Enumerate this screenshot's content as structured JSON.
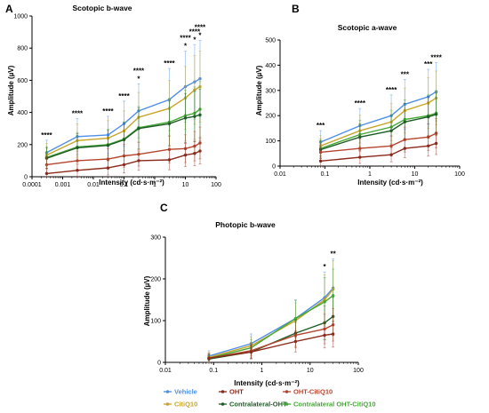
{
  "colors": {
    "Vehicle": "#4f8fe8",
    "CitiQ10": "#c8a42a",
    "OHT": "#8b2a1b",
    "Contralateral-OHT": "#1e5c26",
    "OHT-CitiQ10": "#b5452e",
    "Contralateral OHT-CitiQ10": "#44a834"
  },
  "legend": {
    "items": [
      {
        "label": "Vehicle",
        "color": "#4f8fe8"
      },
      {
        "label": "OHT",
        "color": "#8b2a1b"
      },
      {
        "label": "OHT-CitiQ10",
        "color": "#b5452e"
      },
      {
        "label": "CitiQ10",
        "color": "#c8a42a"
      },
      {
        "label": "Contralateral-OHT",
        "color": "#1e5c26"
      },
      {
        "label": "Contralateral OHT-CitiQ10",
        "color": "#44a834"
      }
    ]
  },
  "chart_data": [
    {
      "panel": "A",
      "type": "line",
      "title": "Scotopic b-wave",
      "xlabel": "Intensity (cd·s·m⁻²)",
      "ylabel": "Amplitude (µV)",
      "xscale": "log",
      "xlim": [
        0.0001,
        100
      ],
      "ylim": [
        0,
        1000
      ],
      "xticks": [
        "0.0001",
        "0.001",
        "0.01",
        "0.1",
        "1",
        "10",
        "100"
      ],
      "yticks": [
        0,
        200,
        400,
        600,
        800,
        1000
      ],
      "x": [
        0.0003,
        0.003,
        0.03,
        0.1,
        0.3,
        3,
        10,
        20,
        30
      ],
      "series": [
        {
          "name": "Vehicle",
          "values": [
            150,
            250,
            260,
            330,
            410,
            480,
            560,
            590,
            610
          ]
        },
        {
          "name": "CitiQ10",
          "values": [
            135,
            225,
            240,
            285,
            370,
            425,
            490,
            540,
            560
          ]
        },
        {
          "name": "Contralateral OHT-CitiQ10",
          "values": [
            120,
            185,
            200,
            235,
            305,
            340,
            380,
            395,
            420
          ]
        },
        {
          "name": "Contralateral-OHT",
          "values": [
            115,
            180,
            195,
            230,
            300,
            330,
            365,
            375,
            385
          ]
        },
        {
          "name": "OHT-CitiQ10",
          "values": [
            75,
            100,
            110,
            130,
            140,
            170,
            175,
            190,
            210
          ]
        },
        {
          "name": "OHT",
          "values": [
            20,
            40,
            55,
            75,
            100,
            105,
            135,
            145,
            160
          ]
        }
      ],
      "annotations": [
        {
          "x": 0.0003,
          "text": "****"
        },
        {
          "x": 0.003,
          "text": "****"
        },
        {
          "x": 0.03,
          "text": "****"
        },
        {
          "x": 0.1,
          "text": "****"
        },
        {
          "x": 0.3,
          "text": "*"
        },
        {
          "x": 0.3,
          "text": "****"
        },
        {
          "x": 3,
          "text": "****"
        },
        {
          "x": 10,
          "text": "*"
        },
        {
          "x": 10,
          "text": "****"
        },
        {
          "x": 20,
          "text": "*"
        },
        {
          "x": 20,
          "text": "****"
        },
        {
          "x": 30,
          "text": "*"
        },
        {
          "x": 30,
          "text": "****"
        }
      ]
    },
    {
      "panel": "B",
      "type": "line",
      "title": "Scotopic a-wave",
      "xlabel": "Intensity (cd·s·m⁻²)",
      "ylabel": "Amplitude (µV)",
      "xscale": "log",
      "xlim": [
        0.01,
        100
      ],
      "ylim": [
        0,
        500
      ],
      "xticks": [
        "0.01",
        "0.1",
        "1",
        "10",
        "100"
      ],
      "yticks": [
        0,
        100,
        200,
        300,
        400,
        500
      ],
      "x": [
        0.08,
        0.6,
        3,
        6,
        20,
        30
      ],
      "series": [
        {
          "name": "Vehicle",
          "values": [
            95,
            160,
            200,
            245,
            275,
            295
          ]
        },
        {
          "name": "CitiQ10",
          "values": [
            80,
            140,
            175,
            220,
            250,
            270
          ]
        },
        {
          "name": "Contralateral OHT-CitiQ10",
          "values": [
            70,
            125,
            155,
            185,
            200,
            210
          ]
        },
        {
          "name": "Contralateral-OHT",
          "values": [
            65,
            115,
            140,
            175,
            195,
            205
          ]
        },
        {
          "name": "OHT-CitiQ10",
          "values": [
            55,
            70,
            80,
            105,
            115,
            130
          ]
        },
        {
          "name": "OHT",
          "values": [
            20,
            35,
            45,
            70,
            80,
            90
          ]
        }
      ],
      "annotations": [
        {
          "x": 0.08,
          "text": "***"
        },
        {
          "x": 0.6,
          "text": "****"
        },
        {
          "x": 3,
          "text": "****"
        },
        {
          "x": 6,
          "text": "***"
        },
        {
          "x": 20,
          "text": "***"
        },
        {
          "x": 30,
          "text": "****"
        }
      ]
    },
    {
      "panel": "C",
      "type": "line",
      "title": "Photopic b-wave",
      "xlabel": "Intensity (cd·s·m⁻²)",
      "ylabel": "Amplitude (µV)",
      "xscale": "log",
      "xlim": [
        0.01,
        100
      ],
      "ylim": [
        0,
        300
      ],
      "xticks": [
        "0.01",
        "0.1",
        "1",
        "10",
        "100"
      ],
      "yticks": [
        0,
        100,
        200,
        300
      ],
      "x": [
        0.08,
        0.6,
        5,
        20,
        30
      ],
      "series": [
        {
          "name": "Vehicle",
          "values": [
            15,
            45,
            105,
            155,
            178
          ]
        },
        {
          "name": "CitiQ10",
          "values": [
            12,
            40,
            100,
            150,
            175
          ]
        },
        {
          "name": "Contralateral OHT-CitiQ10",
          "values": [
            10,
            35,
            105,
            145,
            160
          ]
        },
        {
          "name": "Contralateral-OHT",
          "values": [
            8,
            25,
            70,
            95,
            110
          ]
        },
        {
          "name": "OHT-CitiQ10",
          "values": [
            10,
            28,
            65,
            80,
            90
          ]
        },
        {
          "name": "OHT",
          "values": [
            10,
            25,
            50,
            65,
            68
          ]
        }
      ],
      "annotations": [
        {
          "x": 20,
          "text": "*"
        },
        {
          "x": 30,
          "text": "**"
        }
      ]
    }
  ]
}
